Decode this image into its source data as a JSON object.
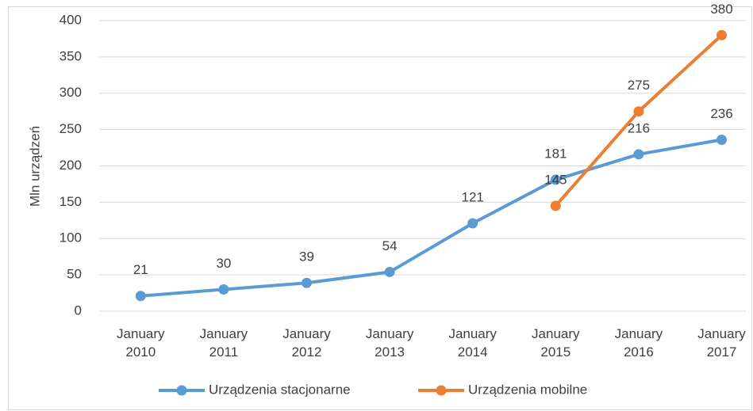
{
  "chart_data": {
    "type": "line",
    "categories": [
      "January 2010",
      "January 2011",
      "January 2012",
      "January 2013",
      "January 2014",
      "January 2015",
      "January 2016",
      "January 2017"
    ],
    "series": [
      {
        "name": "Urządzenia stacjonarne",
        "color": "#5b9bd5",
        "values": [
          21,
          30,
          39,
          54,
          121,
          181,
          216,
          236
        ]
      },
      {
        "name": "Urządzenia mobilne",
        "color": "#ed7d31",
        "values": [
          null,
          null,
          null,
          null,
          null,
          145,
          275,
          380
        ]
      }
    ],
    "y_label": "Mln urządzeń",
    "ylim": [
      0,
      400
    ],
    "yticks": [
      0,
      50,
      100,
      150,
      200,
      250,
      300,
      350,
      400
    ],
    "grid": true,
    "legend": "bottom"
  }
}
